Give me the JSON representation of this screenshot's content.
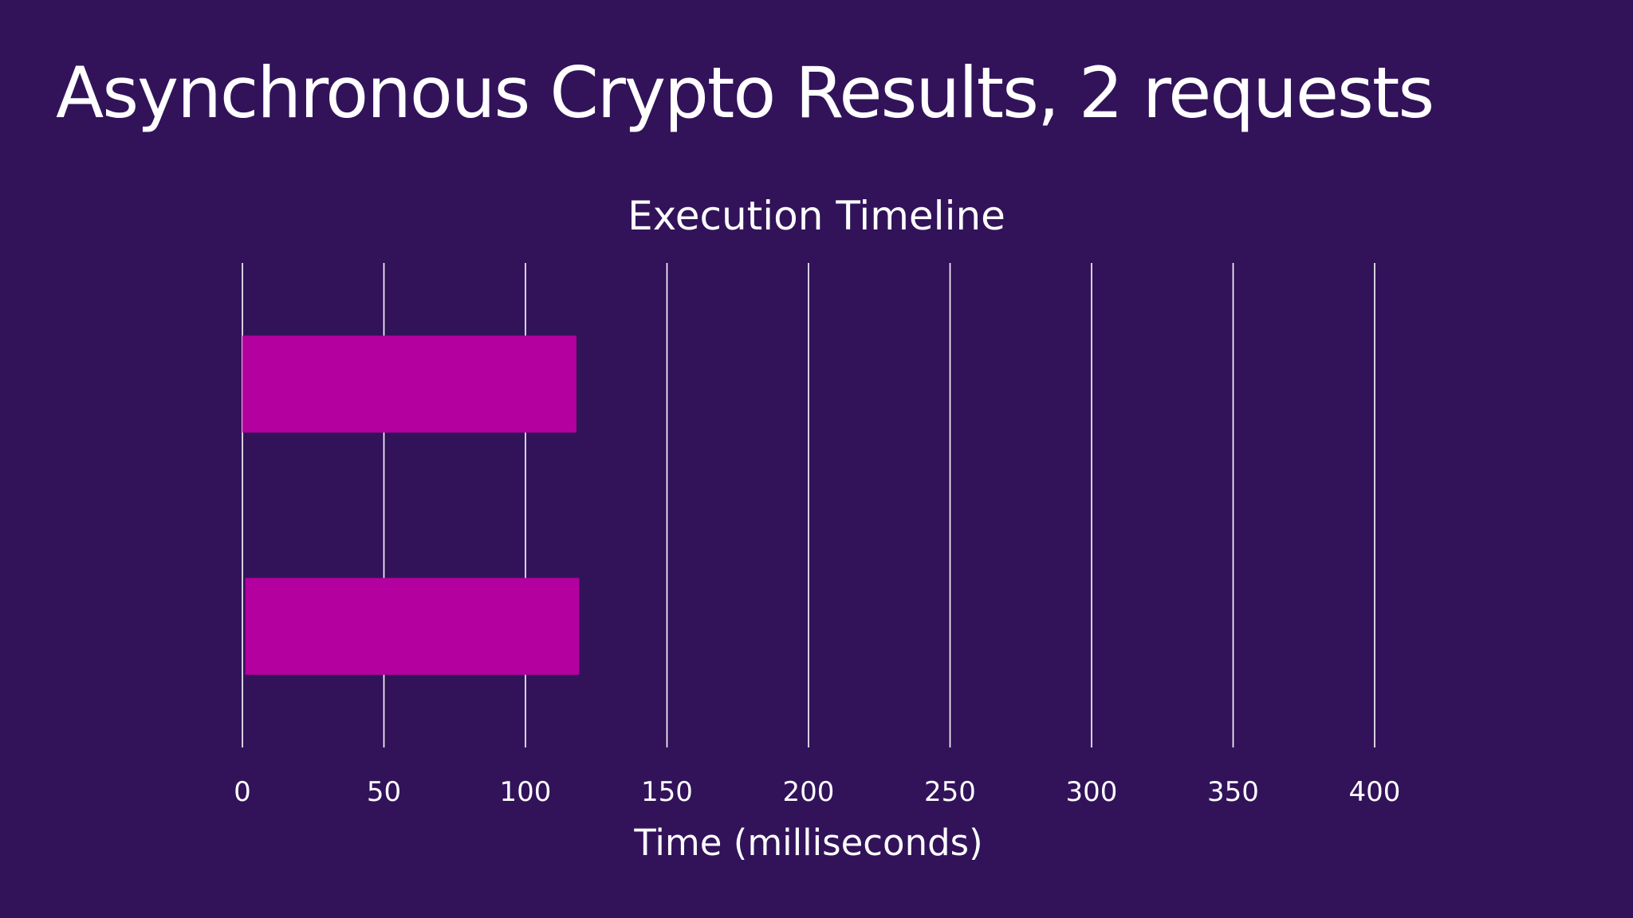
{
  "slide": {
    "title": "Asynchronous Crypto Results, 2 requests",
    "background_color": "#32135a"
  },
  "chart_data": {
    "type": "bar",
    "orientation": "horizontal",
    "title": "Execution Timeline",
    "xlabel": "Time (milliseconds)",
    "ylabel": "",
    "xlim": [
      0,
      400
    ],
    "x_ticks": [
      "0",
      "50",
      "100",
      "150",
      "200",
      "250",
      "300",
      "350",
      "400"
    ],
    "grid": "vertical",
    "legend": "none",
    "bar_color": "#b4009e",
    "gridline_color": "#ffffff",
    "series": [
      {
        "values": [
          {
            "start": 0,
            "end": 118
          },
          {
            "start": 1,
            "end": 119
          }
        ]
      }
    ]
  }
}
